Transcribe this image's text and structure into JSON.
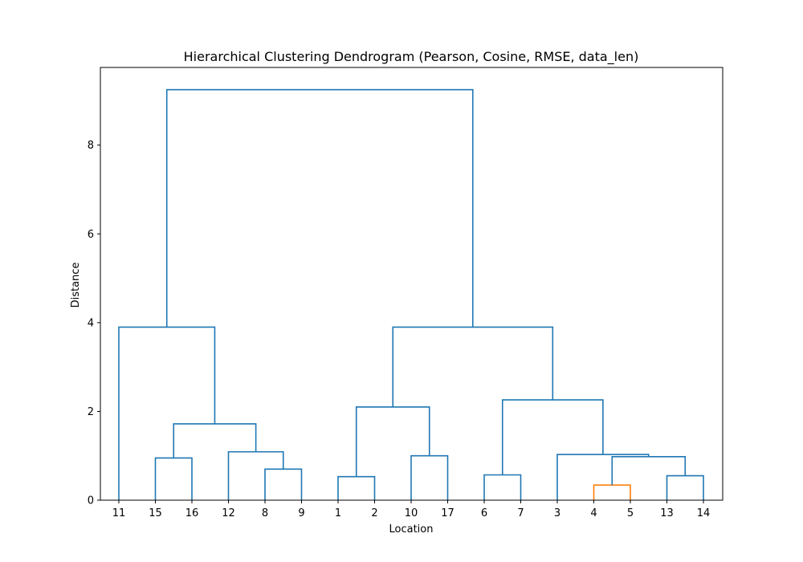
{
  "chart_data": {
    "type": "dendrogram",
    "title": "Hierarchical Clustering Dendrogram (Pearson, Cosine, RMSE, data_len)",
    "xlabel": "Location",
    "ylabel": "Distance",
    "ylim": [
      0,
      9.75
    ],
    "yticks": [
      0,
      2,
      4,
      6,
      8
    ],
    "grid": false,
    "leaf_labels": [
      "11",
      "15",
      "16",
      "12",
      "8",
      "9",
      "1",
      "2",
      "10",
      "17",
      "6",
      "7",
      "3",
      "4",
      "5",
      "13",
      "14"
    ],
    "merges": [
      {
        "id": "c1",
        "left": "L13",
        "right": "L14",
        "height": 0.34,
        "color": "#ff7f0e"
      },
      {
        "id": "c2",
        "left": "L6",
        "right": "L7",
        "height": 0.53,
        "color": "#1f77b4"
      },
      {
        "id": "c3",
        "left": "L15",
        "right": "L16",
        "height": 0.55,
        "color": "#1f77b4"
      },
      {
        "id": "c4",
        "left": "L10",
        "right": "L11",
        "height": 0.57,
        "color": "#1f77b4"
      },
      {
        "id": "c5",
        "left": "L4",
        "right": "L5",
        "height": 0.7,
        "color": "#1f77b4"
      },
      {
        "id": "c6",
        "left": "L1",
        "right": "L2",
        "height": 0.95,
        "color": "#1f77b4"
      },
      {
        "id": "c7",
        "left": "c1",
        "right": "c3",
        "height": 0.98,
        "color": "#1f77b4"
      },
      {
        "id": "c8",
        "left": "L8",
        "right": "L9",
        "height": 1.0,
        "color": "#1f77b4"
      },
      {
        "id": "c9",
        "left": "L12",
        "right": "c7",
        "height": 1.03,
        "color": "#1f77b4"
      },
      {
        "id": "c10",
        "left": "L3",
        "right": "c5",
        "height": 1.09,
        "color": "#1f77b4"
      },
      {
        "id": "c11",
        "left": "c6",
        "right": "c10",
        "height": 1.72,
        "color": "#1f77b4"
      },
      {
        "id": "c12",
        "left": "c6x",
        "right": "c8",
        "height": 2.1,
        "color": "#1f77b4"
      },
      {
        "id": "c13",
        "left": "c4",
        "right": "c9",
        "height": 2.26,
        "color": "#1f77b4"
      },
      {
        "id": "c14",
        "left": "L0",
        "right": "c11",
        "height": 3.9,
        "color": "#1f77b4"
      },
      {
        "id": "c15",
        "left": "c12",
        "right": "c13",
        "height": 3.9,
        "color": "#1f77b4"
      },
      {
        "id": "c16",
        "left": "c14",
        "right": "c15",
        "height": 9.25,
        "color": "#1f77b4"
      }
    ]
  }
}
